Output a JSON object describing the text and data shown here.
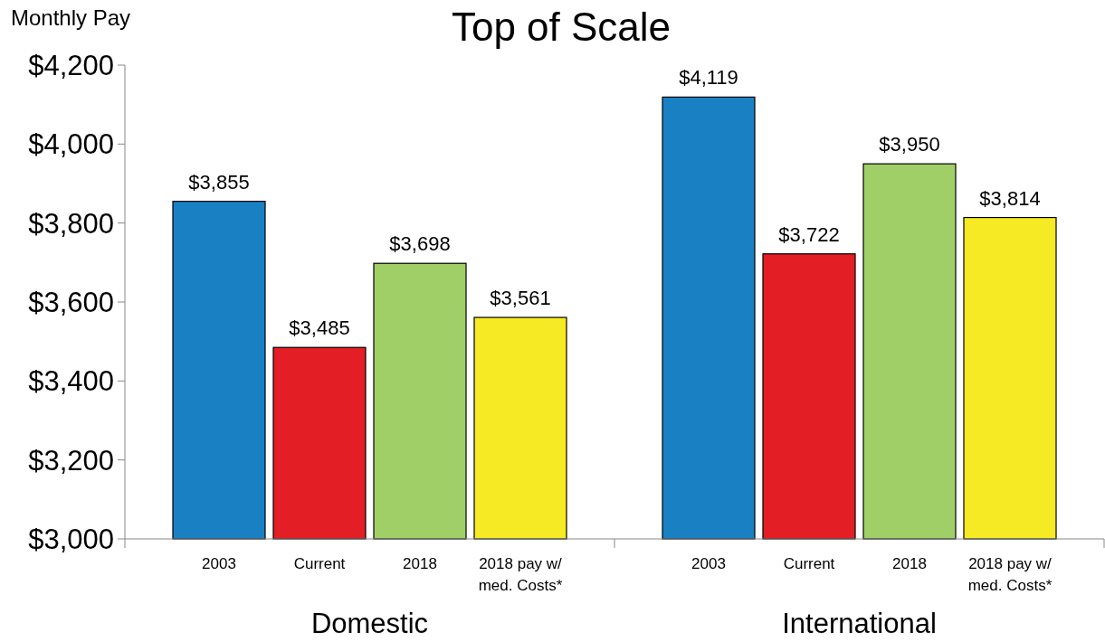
{
  "chart_data": {
    "type": "bar",
    "title": "Top of Scale",
    "ylabel": "Monthly Pay",
    "categories": [
      "2003",
      "Current",
      "2018",
      "2018 pay w/ med. Costs*",
      "2003",
      "Current",
      "2018",
      "2018 pay w/ med. Costs*"
    ],
    "values": [
      3855,
      3485,
      3698,
      3561,
      4119,
      3722,
      3950,
      3814
    ],
    "colors": [
      "#1a80c4",
      "#e31e25",
      "#a0cf67",
      "#f5ea23",
      "#1a80c4",
      "#e31e25",
      "#a0cf67",
      "#f5ea23"
    ],
    "value_labels": [
      "$3,855",
      "$3,485",
      "$3,698",
      "$3,561",
      "$4,119",
      "$3,722",
      "$3,950",
      "$3,814"
    ],
    "annotations": [
      "Domestic",
      "International"
    ],
    "ylim": [
      3000,
      4200
    ],
    "yticks": [
      {
        "value": 3000,
        "label": "$3,000"
      },
      {
        "value": 3200,
        "label": "$3,200"
      },
      {
        "value": 3400,
        "label": "$3,400"
      },
      {
        "value": 3600,
        "label": "$3,600"
      },
      {
        "value": 3800,
        "label": "$3,800"
      },
      {
        "value": 4000,
        "label": "$4,000"
      },
      {
        "value": 4200,
        "label": "$4,200"
      }
    ],
    "grid": false
  }
}
